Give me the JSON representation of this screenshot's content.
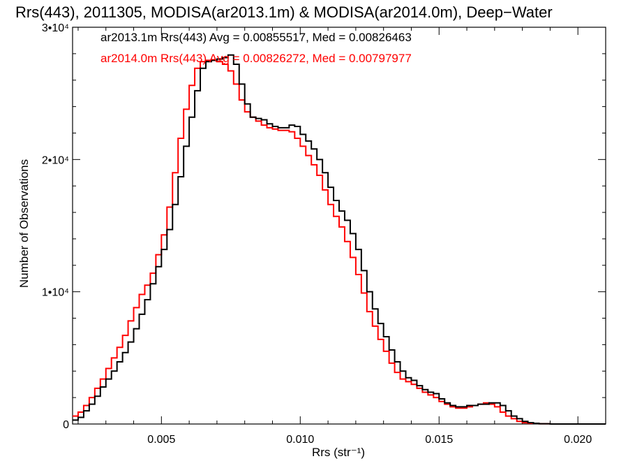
{
  "chart_data": {
    "type": "line",
    "title": "Rrs(443), 2011305, MODISA(ar2013.1m) & MODISA(ar2014.0m), Deep−Water",
    "xlabel": "Rrs (str⁻¹)",
    "ylabel": "Number of Observations",
    "xlim": [
      0.0018,
      0.021
    ],
    "ylim": [
      0,
      30000
    ],
    "x_ticks": [
      {
        "value": 0.005,
        "label": "0.005"
      },
      {
        "value": 0.01,
        "label": "0.010"
      },
      {
        "value": 0.015,
        "label": "0.015"
      },
      {
        "value": 0.02,
        "label": "0.020"
      }
    ],
    "y_ticks": [
      {
        "value": 0,
        "label": "0"
      },
      {
        "value": 10000,
        "label": "1•10⁴"
      },
      {
        "value": 20000,
        "label": "2•10⁴"
      },
      {
        "value": 30000,
        "label": "3•10⁴"
      }
    ],
    "grid": false,
    "legend_position": "top-left",
    "series": [
      {
        "name": "ar2013.1m Rrs(443)",
        "legend_text": "ar2013.1m Rrs(443) Avg = 0.00855517, Med = 0.00826463",
        "color": "#000000",
        "points": [
          [
            0.0018,
            300
          ],
          [
            0.002,
            500
          ],
          [
            0.0022,
            1000
          ],
          [
            0.0024,
            1500
          ],
          [
            0.0026,
            2100
          ],
          [
            0.0028,
            2800
          ],
          [
            0.003,
            3400
          ],
          [
            0.0032,
            4000
          ],
          [
            0.0034,
            4700
          ],
          [
            0.0036,
            5400
          ],
          [
            0.0038,
            6200
          ],
          [
            0.004,
            7200
          ],
          [
            0.0042,
            8300
          ],
          [
            0.0044,
            9400
          ],
          [
            0.0046,
            10600
          ],
          [
            0.0048,
            11900
          ],
          [
            0.005,
            13200
          ],
          [
            0.0052,
            14700
          ],
          [
            0.0054,
            16600
          ],
          [
            0.0056,
            18700
          ],
          [
            0.0058,
            21000
          ],
          [
            0.006,
            23200
          ],
          [
            0.0062,
            25200
          ],
          [
            0.0064,
            26900
          ],
          [
            0.0066,
            27400
          ],
          [
            0.0068,
            27500
          ],
          [
            0.007,
            27600
          ],
          [
            0.0072,
            27700
          ],
          [
            0.0074,
            27900
          ],
          [
            0.0076,
            27200
          ],
          [
            0.0078,
            25700
          ],
          [
            0.008,
            24200
          ],
          [
            0.0082,
            23200
          ],
          [
            0.0084,
            23100
          ],
          [
            0.0086,
            23000
          ],
          [
            0.0088,
            22700
          ],
          [
            0.009,
            22500
          ],
          [
            0.0092,
            22400
          ],
          [
            0.0094,
            22400
          ],
          [
            0.0096,
            22600
          ],
          [
            0.0098,
            22500
          ],
          [
            0.01,
            21900
          ],
          [
            0.0102,
            21400
          ],
          [
            0.0104,
            20800
          ],
          [
            0.0106,
            20000
          ],
          [
            0.0108,
            19000
          ],
          [
            0.011,
            17900
          ],
          [
            0.0112,
            16900
          ],
          [
            0.0114,
            16100
          ],
          [
            0.0116,
            15400
          ],
          [
            0.0118,
            14400
          ],
          [
            0.012,
            13200
          ],
          [
            0.0122,
            11600
          ],
          [
            0.0124,
            10000
          ],
          [
            0.0126,
            8700
          ],
          [
            0.0128,
            7600
          ],
          [
            0.013,
            6600
          ],
          [
            0.0132,
            5600
          ],
          [
            0.0134,
            4700
          ],
          [
            0.0136,
            4000
          ],
          [
            0.0138,
            3500
          ],
          [
            0.014,
            3300
          ],
          [
            0.0142,
            2900
          ],
          [
            0.0144,
            2600
          ],
          [
            0.0146,
            2400
          ],
          [
            0.0148,
            2300
          ],
          [
            0.015,
            1900
          ],
          [
            0.0152,
            1600
          ],
          [
            0.0154,
            1400
          ],
          [
            0.0156,
            1300
          ],
          [
            0.0158,
            1300
          ],
          [
            0.016,
            1400
          ],
          [
            0.0162,
            1400
          ],
          [
            0.0164,
            1500
          ],
          [
            0.0166,
            1500
          ],
          [
            0.0168,
            1600
          ],
          [
            0.017,
            1600
          ],
          [
            0.0172,
            1400
          ],
          [
            0.0174,
            1000
          ],
          [
            0.0176,
            600
          ],
          [
            0.0178,
            400
          ],
          [
            0.018,
            200
          ],
          [
            0.0182,
            100
          ],
          [
            0.0184,
            50
          ],
          [
            0.0186,
            20
          ],
          [
            0.019,
            0
          ],
          [
            0.021,
            0
          ]
        ]
      },
      {
        "name": "ar2014.0m Rrs(443)",
        "legend_text": "ar2014.0m Rrs(443) Avg = 0.00826272, Med = 0.00797977",
        "color": "#ff0000",
        "points": [
          [
            0.0018,
            600
          ],
          [
            0.002,
            900
          ],
          [
            0.0022,
            1400
          ],
          [
            0.0024,
            2000
          ],
          [
            0.0026,
            2700
          ],
          [
            0.0028,
            3400
          ],
          [
            0.003,
            4200
          ],
          [
            0.0032,
            5000
          ],
          [
            0.0034,
            5800
          ],
          [
            0.0036,
            6700
          ],
          [
            0.0038,
            7800
          ],
          [
            0.004,
            8800
          ],
          [
            0.0042,
            9800
          ],
          [
            0.0044,
            10500
          ],
          [
            0.0046,
            11400
          ],
          [
            0.0048,
            12800
          ],
          [
            0.005,
            14300
          ],
          [
            0.0052,
            16400
          ],
          [
            0.0054,
            19000
          ],
          [
            0.0056,
            21600
          ],
          [
            0.0058,
            23800
          ],
          [
            0.006,
            25600
          ],
          [
            0.0062,
            26900
          ],
          [
            0.0064,
            27400
          ],
          [
            0.0066,
            27500
          ],
          [
            0.0068,
            27500
          ],
          [
            0.007,
            27400
          ],
          [
            0.0072,
            27200
          ],
          [
            0.0074,
            26700
          ],
          [
            0.0076,
            25700
          ],
          [
            0.0078,
            24500
          ],
          [
            0.008,
            23600
          ],
          [
            0.0082,
            23200
          ],
          [
            0.0084,
            22900
          ],
          [
            0.0086,
            22600
          ],
          [
            0.0088,
            22400
          ],
          [
            0.009,
            22300
          ],
          [
            0.0092,
            22200
          ],
          [
            0.0094,
            22200
          ],
          [
            0.0096,
            22100
          ],
          [
            0.0098,
            21600
          ],
          [
            0.01,
            21000
          ],
          [
            0.0102,
            20300
          ],
          [
            0.0104,
            19600
          ],
          [
            0.0106,
            18800
          ],
          [
            0.0108,
            17700
          ],
          [
            0.011,
            16600
          ],
          [
            0.0112,
            15700
          ],
          [
            0.0114,
            14900
          ],
          [
            0.0116,
            13800
          ],
          [
            0.0118,
            12600
          ],
          [
            0.012,
            11300
          ],
          [
            0.0122,
            9900
          ],
          [
            0.0124,
            8500
          ],
          [
            0.0126,
            7400
          ],
          [
            0.0128,
            6400
          ],
          [
            0.013,
            5500
          ],
          [
            0.0132,
            4600
          ],
          [
            0.0134,
            3900
          ],
          [
            0.0136,
            3400
          ],
          [
            0.0138,
            3200
          ],
          [
            0.014,
            3000
          ],
          [
            0.0142,
            2700
          ],
          [
            0.0144,
            2400
          ],
          [
            0.0146,
            2200
          ],
          [
            0.0148,
            2000
          ],
          [
            0.015,
            1700
          ],
          [
            0.0152,
            1500
          ],
          [
            0.0154,
            1300
          ],
          [
            0.0156,
            1200
          ],
          [
            0.0158,
            1200
          ],
          [
            0.016,
            1300
          ],
          [
            0.0162,
            1400
          ],
          [
            0.0164,
            1500
          ],
          [
            0.0166,
            1600
          ],
          [
            0.0168,
            1500
          ],
          [
            0.017,
            1300
          ],
          [
            0.0172,
            900
          ],
          [
            0.0174,
            600
          ],
          [
            0.0176,
            400
          ],
          [
            0.0178,
            200
          ],
          [
            0.018,
            100
          ],
          [
            0.0182,
            50
          ],
          [
            0.0186,
            20
          ],
          [
            0.019,
            0
          ],
          [
            0.021,
            0
          ]
        ]
      }
    ]
  }
}
